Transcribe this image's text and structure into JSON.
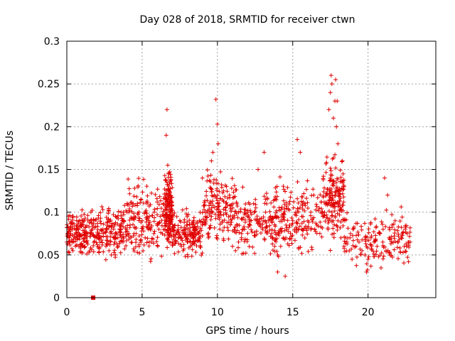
{
  "chart_data": {
    "type": "scatter",
    "title": "Day 028 of 2018, SRMTID for receiver ctwn",
    "xlabel": "GPS time / hours",
    "ylabel": "SRMTID / TECUs",
    "xlim": [
      0,
      24.5
    ],
    "ylim": [
      0,
      0.3
    ],
    "x_ticks": [
      0,
      5,
      10,
      15,
      20
    ],
    "x_tick_labels": [
      "0",
      "5",
      "10",
      "15",
      "20"
    ],
    "y_ticks": [
      0,
      0.05,
      0.1,
      0.15,
      0.2,
      0.25,
      0.3
    ],
    "y_tick_labels": [
      "0",
      "0.05",
      "0.1",
      "0.15",
      "0.2",
      "0.25",
      "0.3"
    ],
    "grid": true,
    "legend": "none",
    "marker": "plus",
    "color": "#e00000",
    "series": [
      {
        "name": "SRMTID",
        "x": [
          0.0,
          0.2,
          0.4,
          0.6,
          0.8,
          1.0,
          1.2,
          1.4,
          1.6,
          1.8,
          2.0,
          2.2,
          2.4,
          2.6,
          2.8,
          3.0,
          3.2,
          3.4,
          3.6,
          3.8,
          4.0,
          4.2,
          4.4,
          4.6,
          4.8,
          5.0,
          5.2,
          5.4,
          5.6,
          5.8,
          6.0,
          6.2,
          6.4,
          6.6,
          6.8,
          7.0,
          7.2,
          7.4,
          7.6,
          7.8,
          8.0,
          8.2,
          8.4,
          8.6,
          8.8,
          9.0,
          9.2,
          9.4,
          9.6,
          9.8,
          10.0,
          10.2,
          10.4,
          10.6,
          10.8,
          11.0,
          11.2,
          11.4,
          11.6,
          11.8,
          12.0,
          12.2,
          12.4,
          12.6,
          12.8,
          13.0,
          13.2,
          13.4,
          13.6,
          13.8,
          14.0,
          14.2,
          14.4,
          14.6,
          14.8,
          15.0,
          15.2,
          15.4,
          15.6,
          15.8,
          16.0,
          16.2,
          16.4,
          16.6,
          16.8,
          17.0,
          17.2,
          17.4,
          17.6,
          17.8,
          18.0,
          18.2,
          18.4,
          18.6,
          18.8,
          19.0,
          19.2,
          19.4,
          19.6,
          19.8,
          20.0,
          20.2,
          20.4,
          20.6,
          20.8,
          21.0,
          21.2,
          21.4,
          21.6,
          21.8,
          22.0,
          22.2,
          22.4,
          22.6,
          22.8,
          6.6,
          6.65,
          6.7,
          9.9,
          10.0,
          10.05,
          9.6,
          9.7,
          15.3,
          15.5,
          17.4,
          17.5,
          17.6,
          17.7,
          17.8,
          17.9,
          18.0,
          17.55,
          17.85,
          17.95,
          14.0,
          14.5,
          19.9,
          21.1,
          21.3,
          13.1,
          12.7,
          18.3,
          18.4
        ],
        "y": [
          0.065,
          0.08,
          0.055,
          0.07,
          0.06,
          0.085,
          0.06,
          0.075,
          0.1,
          0.09,
          0.07,
          0.065,
          0.08,
          0.06,
          0.055,
          0.075,
          0.07,
          0.06,
          0.08,
          0.09,
          0.1,
          0.085,
          0.11,
          0.075,
          0.06,
          0.09,
          0.07,
          0.08,
          0.065,
          0.1,
          0.085,
          0.095,
          0.11,
          0.09,
          0.12,
          0.08,
          0.065,
          0.07,
          0.06,
          0.075,
          0.065,
          0.06,
          0.07,
          0.08,
          0.09,
          0.085,
          0.1,
          0.07,
          0.095,
          0.12,
          0.11,
          0.1,
          0.125,
          0.13,
          0.12,
          0.06,
          0.055,
          0.065,
          0.07,
          0.08,
          0.095,
          0.1,
          0.11,
          0.09,
          0.085,
          0.08,
          0.1,
          0.09,
          0.075,
          0.06,
          0.05,
          0.06,
          0.07,
          0.08,
          0.085,
          0.09,
          0.1,
          0.08,
          0.095,
          0.11,
          0.09,
          0.1,
          0.12,
          0.085,
          0.075,
          0.095,
          0.11,
          0.09,
          0.1,
          0.12,
          0.09,
          0.07,
          0.06,
          0.065,
          0.07,
          0.08,
          0.06,
          0.065,
          0.055,
          0.05,
          0.045,
          0.07,
          0.065,
          0.06,
          0.075,
          0.08,
          0.055,
          0.07,
          0.085,
          0.09,
          0.065,
          0.07,
          0.06,
          0.075,
          0.065,
          0.19,
          0.22,
          0.155,
          0.232,
          0.203,
          0.18,
          0.16,
          0.17,
          0.185,
          0.17,
          0.22,
          0.24,
          0.25,
          0.21,
          0.23,
          0.2,
          0.18,
          0.26,
          0.255,
          0.23,
          0.03,
          0.025,
          0.03,
          0.14,
          0.12,
          0.17,
          0.15,
          0.16,
          0.13
        ],
        "clouds": [
          {
            "x": [
              0.0,
              1.8
            ],
            "y": [
              0.04,
              0.11
            ]
          },
          {
            "x": [
              1.8,
              4.0
            ],
            "y": [
              0.035,
              0.12
            ]
          },
          {
            "x": [
              4.0,
              6.5
            ],
            "y": [
              0.03,
              0.15
            ]
          },
          {
            "x": [
              6.5,
              7.0
            ],
            "y": [
              0.05,
              0.16
            ]
          },
          {
            "x": [
              7.0,
              9.0
            ],
            "y": [
              0.04,
              0.11
            ]
          },
          {
            "x": [
              9.0,
              11.2
            ],
            "y": [
              0.05,
              0.16
            ]
          },
          {
            "x": [
              11.2,
              14.0
            ],
            "y": [
              0.04,
              0.14
            ]
          },
          {
            "x": [
              14.0,
              17.0
            ],
            "y": [
              0.04,
              0.15
            ]
          },
          {
            "x": [
              17.0,
              18.4
            ],
            "y": [
              0.05,
              0.18
            ]
          },
          {
            "x": [
              18.4,
              22.8
            ],
            "y": [
              0.025,
              0.11
            ]
          }
        ]
      },
      {
        "name": "marker",
        "x": [
          1.75
        ],
        "y": [
          0.0
        ],
        "style": "square"
      }
    ]
  }
}
